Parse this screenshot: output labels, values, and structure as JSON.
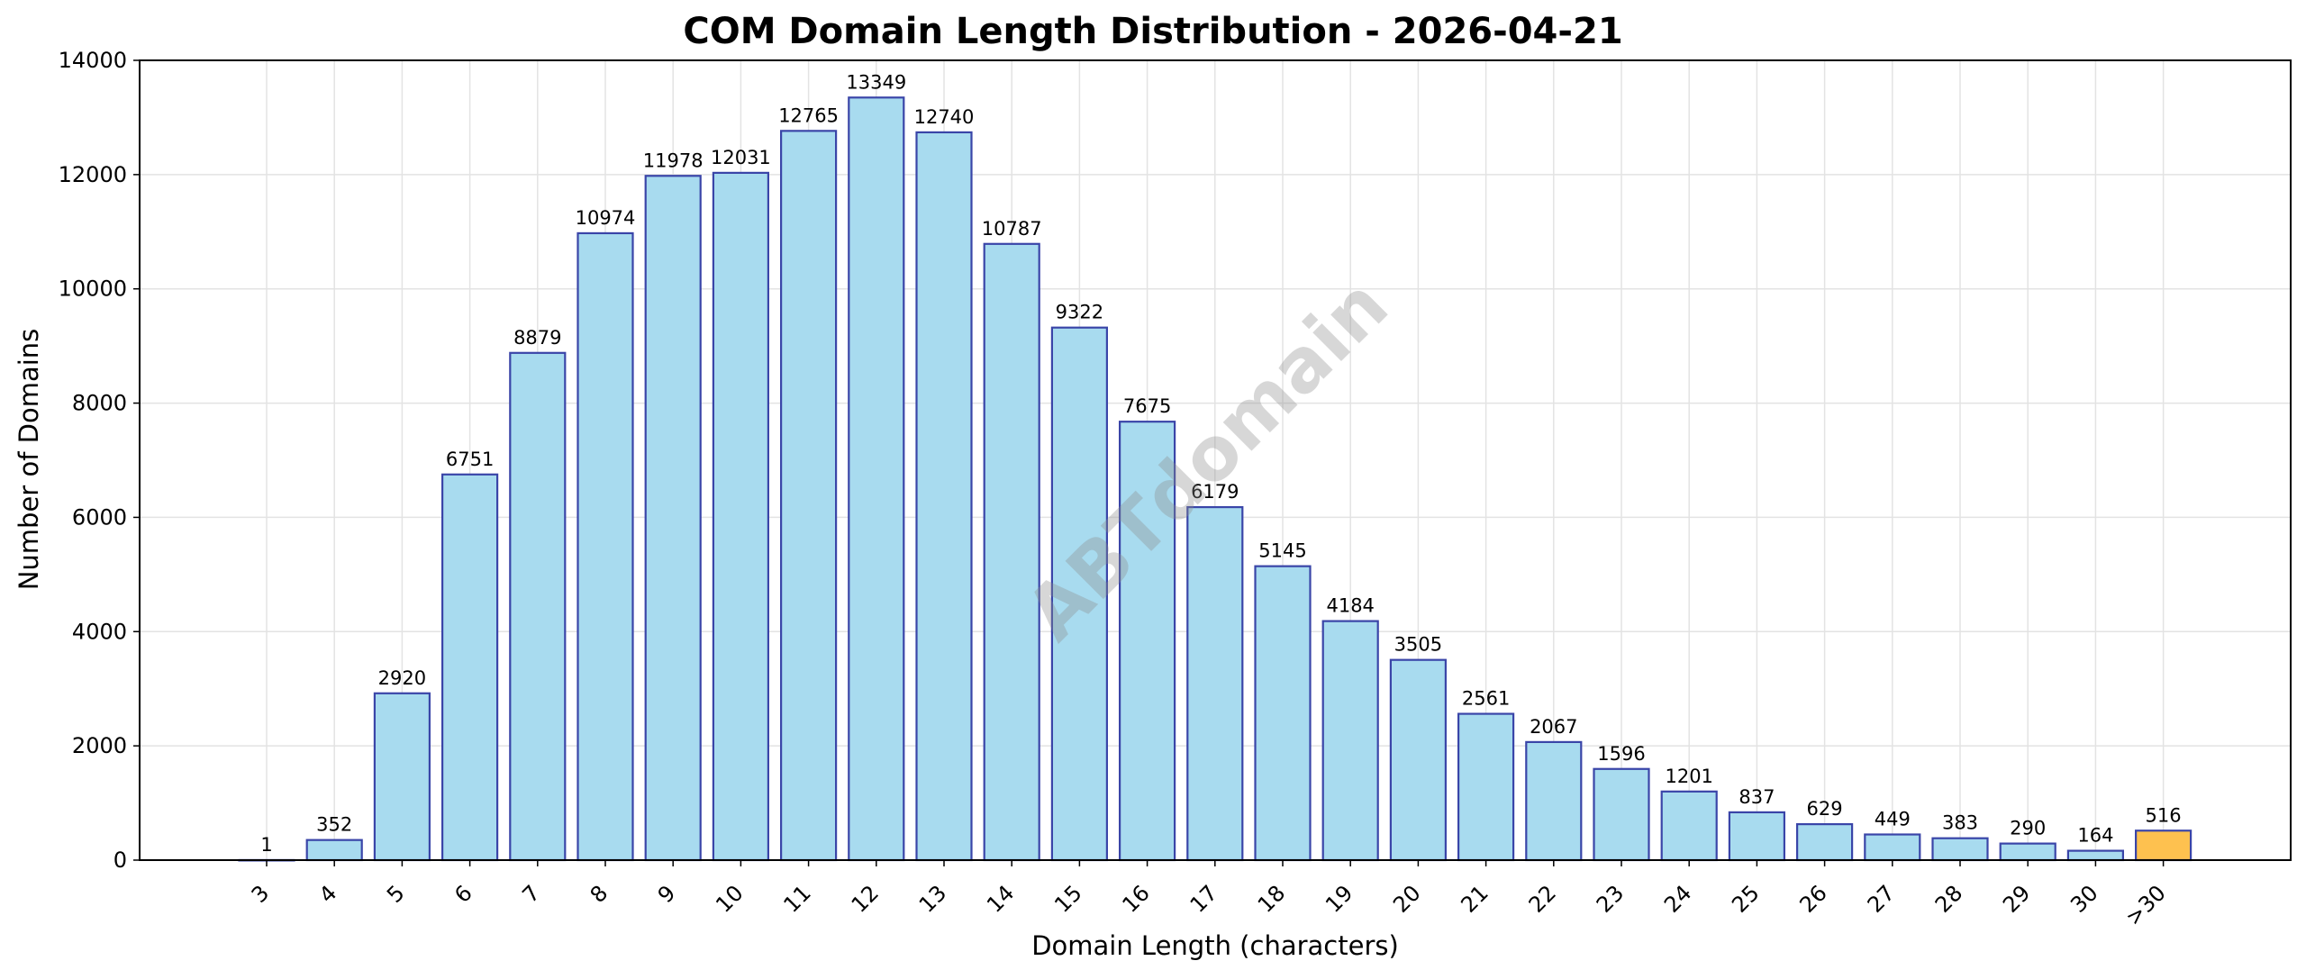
{
  "chart_data": {
    "type": "bar",
    "title": "COM Domain Length Distribution - 2026-04-21",
    "xlabel": "Domain Length (characters)",
    "ylabel": "Number of Domains",
    "categories": [
      "3",
      "4",
      "5",
      "6",
      "7",
      "8",
      "9",
      "10",
      "11",
      "12",
      "13",
      "14",
      "15",
      "16",
      "17",
      "18",
      "19",
      "20",
      "21",
      "22",
      "23",
      "24",
      "25",
      "26",
      "27",
      "28",
      "29",
      "30",
      ">30"
    ],
    "values": [
      1,
      352,
      2920,
      6751,
      8879,
      10974,
      11978,
      12031,
      12765,
      13349,
      12740,
      10787,
      9322,
      7675,
      6179,
      5145,
      4184,
      3505,
      2561,
      2067,
      1596,
      1201,
      837,
      629,
      449,
      383,
      290,
      164,
      516
    ],
    "ylim": [
      0,
      14000
    ],
    "yticks": [
      0,
      2000,
      4000,
      6000,
      8000,
      10000,
      12000,
      14000
    ],
    "grid": true,
    "legend": null,
    "colors": {
      "bar_fill": "#a8dbef",
      "bar_edge": "#3a45a8",
      "highlight_fill": "#fec14f",
      "grid": "#e3e3e3"
    },
    "highlight_category": ">30",
    "watermark": "ABTdomain"
  }
}
